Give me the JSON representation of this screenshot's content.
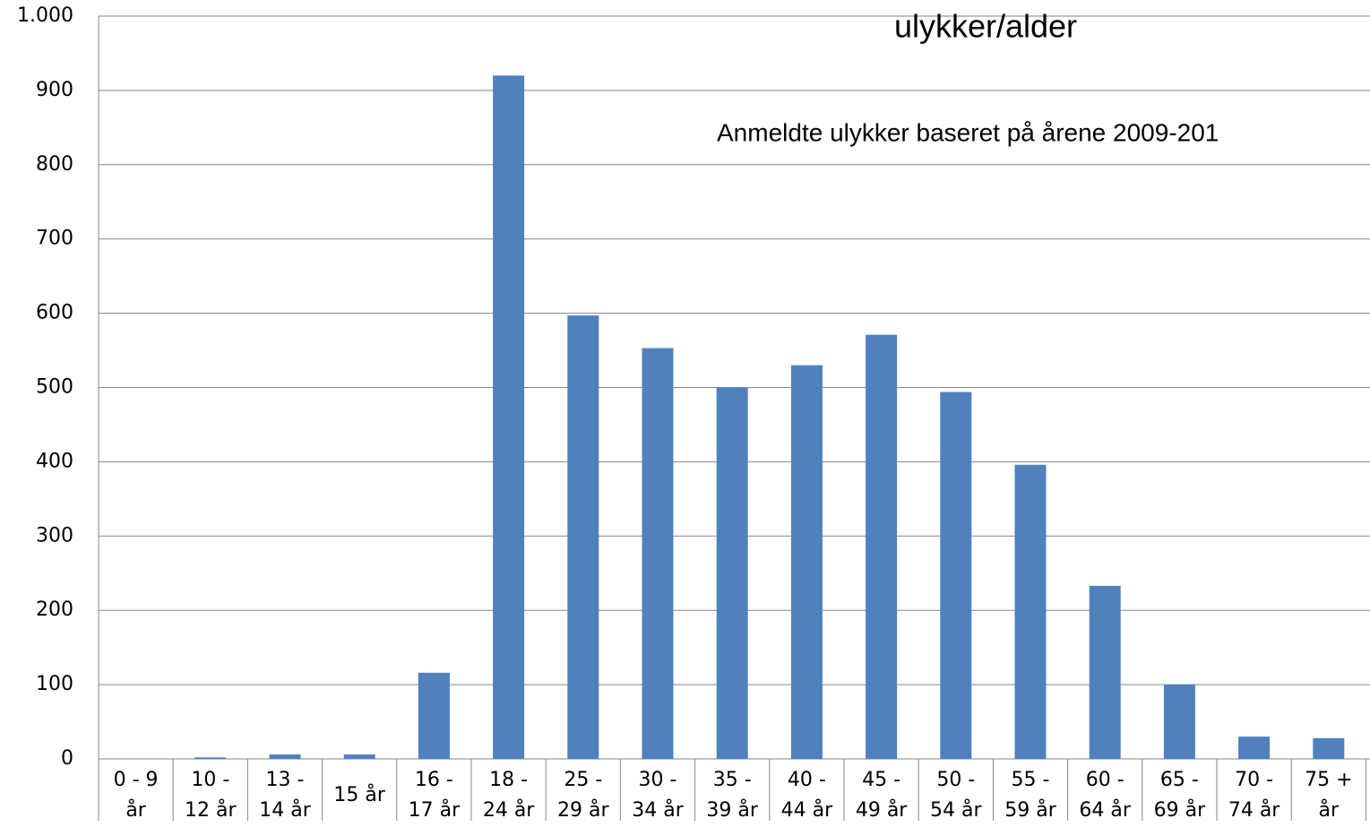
{
  "chart_data": {
    "type": "bar",
    "title": "ulykker/alder",
    "subtitle": "Anmeldte ulykker baseret på årene 2009-201",
    "categories": [
      "0 - 9 år",
      "10 - 12 år",
      "13 - 14 år",
      "15 år",
      "16 - 17 år",
      "18 - 24 år",
      "25 - 29 år",
      "30 - 34 år",
      "35 - 39 år",
      "40 - 44 år",
      "45 - 49 år",
      "50 - 54 år",
      "55 - 59 år",
      "60 - 64 år",
      "65 - 69 år",
      "70 - 74 år",
      "75 + år"
    ],
    "values": [
      0,
      2,
      6,
      6,
      116,
      920,
      597,
      553,
      500,
      530,
      571,
      494,
      396,
      233,
      100,
      30,
      28
    ],
    "color": "#4f81bd",
    "ylim": [
      0,
      1000
    ],
    "yticks": [
      0,
      100,
      200,
      300,
      400,
      500,
      600,
      700,
      800,
      900,
      {
        "value": 1000,
        "label": "1.000"
      }
    ],
    "grid": true
  }
}
